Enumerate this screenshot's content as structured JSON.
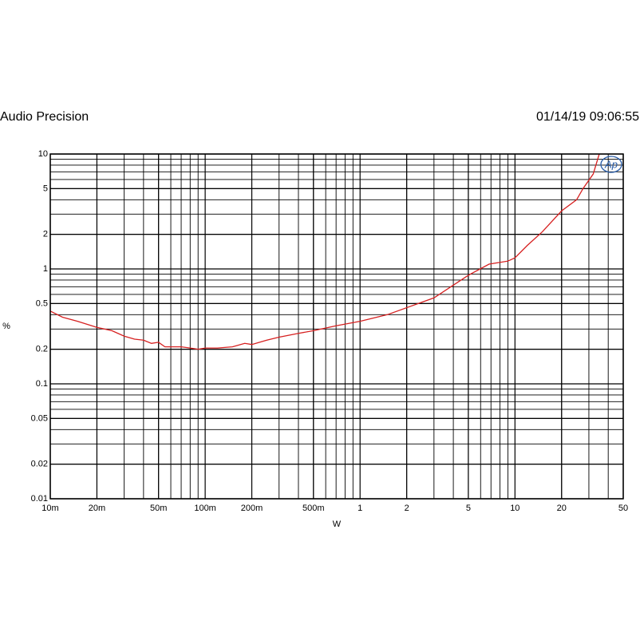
{
  "chart_data": {
    "type": "line",
    "title": "Audio Precision",
    "timestamp": "01/14/19 09:06:55",
    "logo": "Ap",
    "xlabel": "W",
    "ylabel": "%",
    "xscale": "log",
    "yscale": "log",
    "grid": true,
    "xlim": [
      0.01,
      50
    ],
    "ylim": [
      0.01,
      10
    ],
    "xticks": [
      {
        "value": 0.01,
        "label": "10m"
      },
      {
        "value": 0.02,
        "label": "20m"
      },
      {
        "value": 0.05,
        "label": "50m"
      },
      {
        "value": 0.1,
        "label": "100m"
      },
      {
        "value": 0.2,
        "label": "200m"
      },
      {
        "value": 0.5,
        "label": "500m"
      },
      1,
      2,
      5,
      10,
      20,
      50
    ],
    "yticks": [
      0.01,
      0.02,
      0.05,
      0.1,
      0.2,
      0.5,
      1,
      2,
      5,
      10
    ],
    "x": [
      0.01,
      0.012,
      0.015,
      0.02,
      0.025,
      0.03,
      0.035,
      0.04,
      0.045,
      0.05,
      0.055,
      0.06,
      0.07,
      0.08,
      0.09,
      0.1,
      0.12,
      0.15,
      0.18,
      0.2,
      0.25,
      0.3,
      0.4,
      0.5,
      0.7,
      1,
      1.5,
      2,
      3,
      5,
      6.8,
      9,
      10,
      12,
      15,
      20,
      25,
      27.5,
      32,
      35
    ],
    "series": [
      {
        "color": "#d62020",
        "values": [
          0.43,
          0.38,
          0.35,
          0.31,
          0.29,
          0.26,
          0.245,
          0.24,
          0.225,
          0.23,
          0.21,
          0.21,
          0.21,
          0.205,
          0.2,
          0.205,
          0.205,
          0.21,
          0.225,
          0.22,
          0.24,
          0.255,
          0.275,
          0.29,
          0.32,
          0.35,
          0.4,
          0.46,
          0.56,
          0.88,
          1.1,
          1.17,
          1.25,
          1.6,
          2.1,
          3.2,
          4.0,
          5.0,
          6.7,
          10
        ]
      }
    ]
  }
}
